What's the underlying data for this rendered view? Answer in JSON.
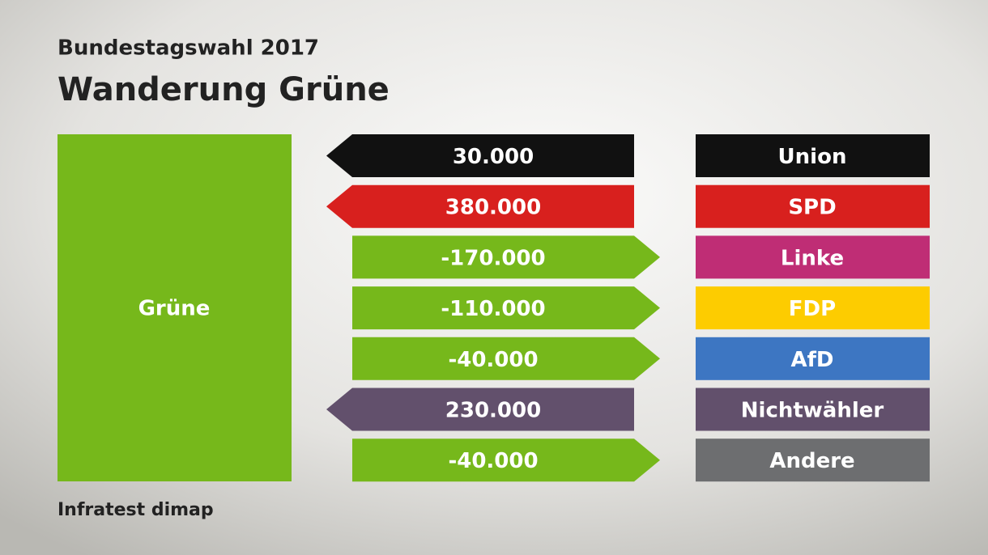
{
  "header": {
    "subtitle": "Bundestagswahl 2017",
    "title": "Wanderung Grüne"
  },
  "party": {
    "label": "Grüne",
    "color": "#76b81b"
  },
  "flows": [
    {
      "value": "30.000",
      "direction": "left",
      "arrow_color": "#111111",
      "label": "Union",
      "color": "#111111"
    },
    {
      "value": "380.000",
      "direction": "left",
      "arrow_color": "#d8201e",
      "label": "SPD",
      "color": "#d8201e"
    },
    {
      "value": "-170.000",
      "direction": "right",
      "arrow_color": "#76b81b",
      "label": "Linke",
      "color": "#bf2d75"
    },
    {
      "value": "-110.000",
      "direction": "right",
      "arrow_color": "#76b81b",
      "label": "FDP",
      "color": "#fdcc00"
    },
    {
      "value": "-40.000",
      "direction": "right",
      "arrow_color": "#76b81b",
      "label": "AfD",
      "color": "#3d76c2"
    },
    {
      "value": "230.000",
      "direction": "left",
      "arrow_color": "#62506c",
      "label": "Nichtwähler",
      "color": "#62506c"
    },
    {
      "value": "-40.000",
      "direction": "right",
      "arrow_color": "#76b81b",
      "label": "Andere",
      "color": "#6d6e70"
    }
  ],
  "footer": {
    "source": "Infratest dimap"
  }
}
